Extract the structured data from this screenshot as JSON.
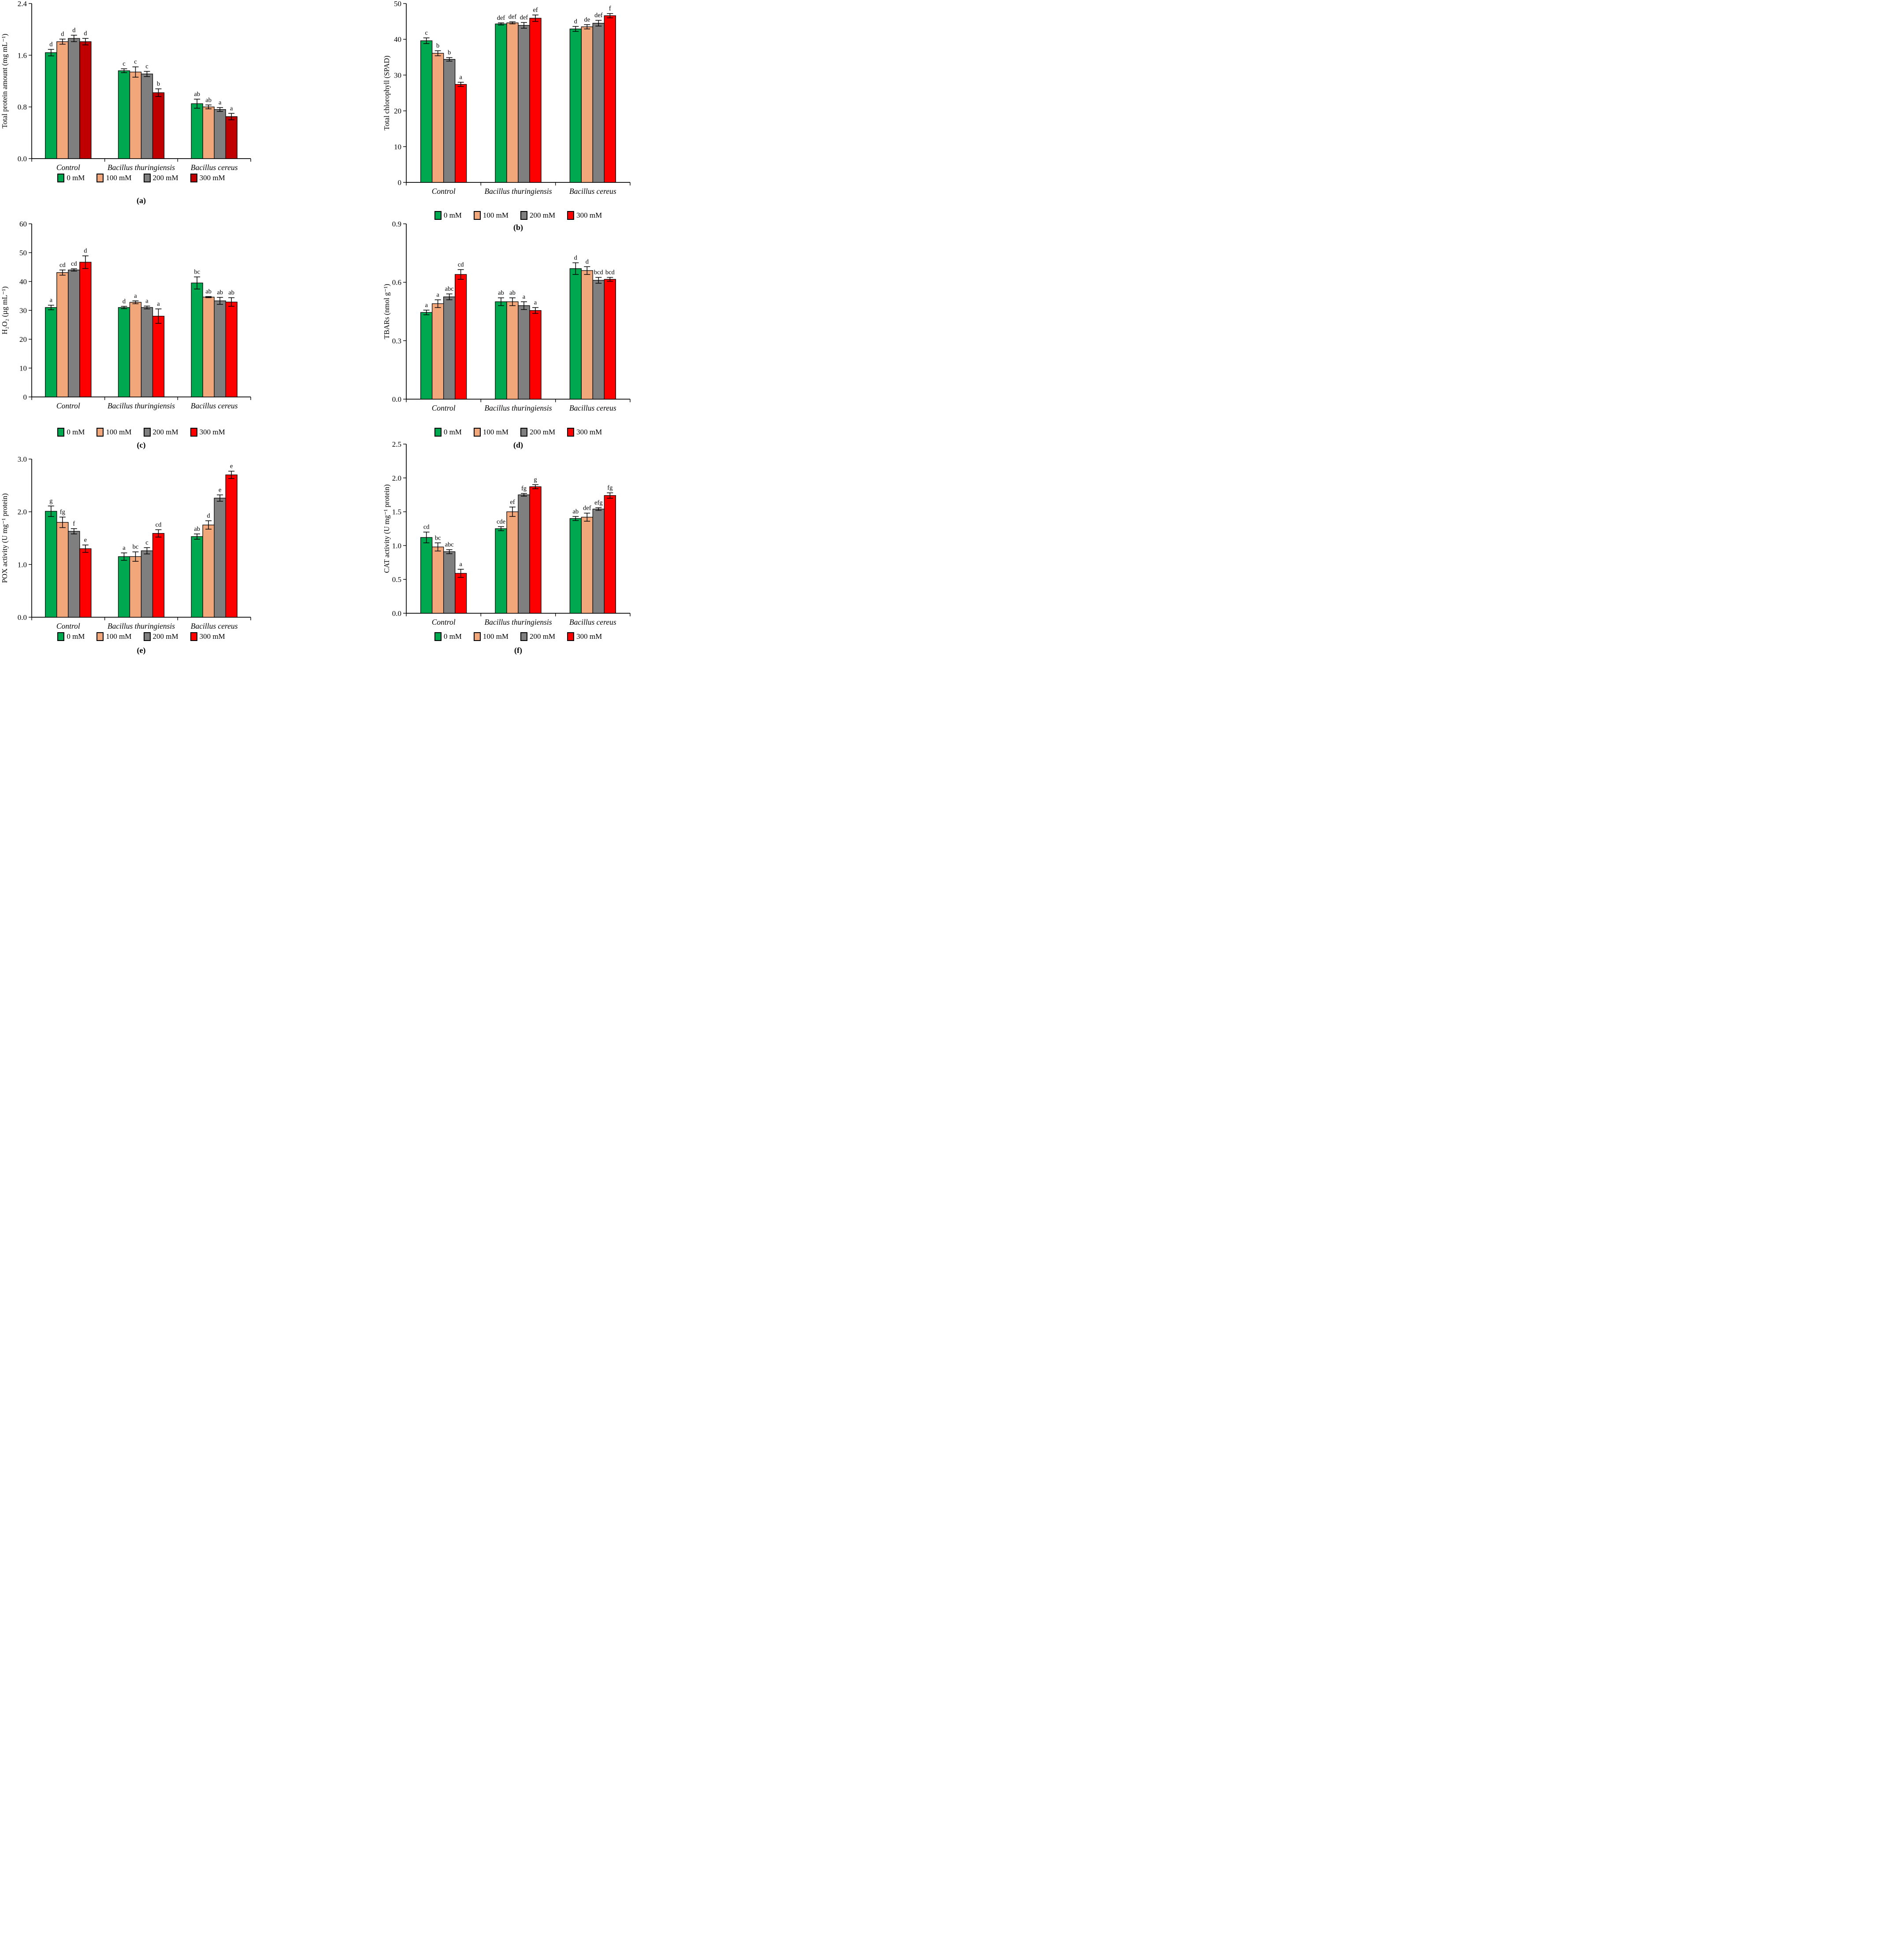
{
  "figure": {
    "background": "#FFFFFF",
    "legend_position": "bottom",
    "series_names": [
      "0 mM",
      "100 mM",
      "200 mM",
      "300 mM"
    ],
    "colors": {
      "green": "#00A94F",
      "peach": "#F2A77B",
      "gray": "#7F7F7F",
      "red": "#FF0000",
      "dark_red": "#C00000",
      "bar_outline": "#000000"
    }
  },
  "chart_data": [
    {
      "id": "a",
      "type": "bar",
      "caption": "(a)",
      "title": "",
      "xlabel": "",
      "ylabel": "Total protein amount (mg mL⁻¹)",
      "ymin": 0,
      "ymax": 2.4,
      "yticks": [
        "0.0",
        "0.8",
        "1.6",
        "2.4"
      ],
      "grid": false,
      "categories": [
        "Control",
        "Bacillus thuringiensis",
        "Bacillus cereus"
      ],
      "series": [
        {
          "name": "0 mM",
          "color": "#00A94F",
          "values": [
            1.64,
            1.36,
            0.85
          ],
          "errors": [
            0.05,
            0.03,
            0.07
          ],
          "letters": [
            "d",
            "c",
            "ab"
          ]
        },
        {
          "name": "100 mM",
          "color": "#F2A77B",
          "values": [
            1.81,
            1.34,
            0.8
          ],
          "errors": [
            0.04,
            0.08,
            0.03
          ],
          "letters": [
            "d",
            "c",
            "ab"
          ]
        },
        {
          "name": "200 mM",
          "color": "#7F7F7F",
          "values": [
            1.86,
            1.31,
            0.76
          ],
          "errors": [
            0.05,
            0.04,
            0.03
          ],
          "letters": [
            "d",
            "c",
            "a"
          ]
        },
        {
          "name": "300 mM",
          "color": "#C00000",
          "values": [
            1.81,
            1.02,
            0.65
          ],
          "errors": [
            0.05,
            0.06,
            0.05
          ],
          "letters": [
            "d",
            "b",
            "a"
          ]
        }
      ],
      "layout": {
        "ml": 72,
        "pw": 497,
        "ph": 352,
        "tp": 8,
        "leg_mt": 0,
        "cap_mt": 30
      }
    },
    {
      "id": "b",
      "type": "bar",
      "caption": "(b)",
      "title": "",
      "xlabel": "",
      "ylabel": "Total chlorophyll (SPAD)",
      "ymin": 0,
      "ymax": 50,
      "yticks": [
        "0",
        "10",
        "20",
        "30",
        "40",
        "50"
      ],
      "grid": false,
      "categories": [
        "Control",
        "Bacillus thuringiensis",
        "Bacillus cereus"
      ],
      "series": [
        {
          "name": "0 mM",
          "color": "#00A94F",
          "values": [
            39.6,
            44.3,
            42.9
          ],
          "errors": [
            0.8,
            0.3,
            0.7
          ],
          "letters": [
            "c",
            "def",
            "d"
          ]
        },
        {
          "name": "100 mM",
          "color": "#F2A77B",
          "values": [
            36.1,
            44.6,
            43.5
          ],
          "errors": [
            0.7,
            0.3,
            0.6
          ],
          "letters": [
            "b",
            "def",
            "de"
          ]
        },
        {
          "name": "200 mM",
          "color": "#7F7F7F",
          "values": [
            34.4,
            43.9,
            44.5
          ],
          "errors": [
            0.5,
            0.8,
            0.8
          ],
          "letters": [
            "b",
            "def",
            "def"
          ]
        },
        {
          "name": "300 mM",
          "color": "#FF0000",
          "values": [
            27.4,
            45.9,
            46.6
          ],
          "errors": [
            0.6,
            0.9,
            0.6
          ],
          "letters": [
            "a",
            "ef",
            "f"
          ]
        }
      ],
      "layout": {
        "ml": 55,
        "pw": 508,
        "ph": 406,
        "tp": 8,
        "leg_mt": 31,
        "cap_mt": 6
      }
    },
    {
      "id": "c",
      "type": "bar",
      "caption": "(c)",
      "title": "",
      "xlabel": "",
      "ylabel": "H₂O₂ (µg mL⁻¹)",
      "ymin": 0,
      "ymax": 60,
      "yticks": [
        "0",
        "10",
        "20",
        "30",
        "40",
        "50",
        "60"
      ],
      "grid": false,
      "categories": [
        "Control",
        "Bacillus thuringiensis",
        "Bacillus cereus"
      ],
      "series": [
        {
          "name": "0 mM",
          "color": "#00A94F",
          "values": [
            31.0,
            31.0,
            39.5
          ],
          "errors": [
            0.8,
            0.4,
            2.1
          ],
          "letters": [
            "a",
            "d",
            "bc"
          ]
        },
        {
          "name": "100 mM",
          "color": "#F2A77B",
          "values": [
            43.1,
            32.8,
            34.6
          ],
          "errors": [
            0.9,
            0.5,
            0.2
          ],
          "letters": [
            "cd",
            "a",
            "ab"
          ]
        },
        {
          "name": "200 mM",
          "color": "#7F7F7F",
          "values": [
            44.0,
            31.0,
            33.3
          ],
          "errors": [
            0.4,
            0.5,
            1.2
          ],
          "letters": [
            "cd",
            "a",
            "ab"
          ]
        },
        {
          "name": "300 mM",
          "color": "#FF0000",
          "values": [
            46.7,
            28.0,
            32.9
          ],
          "errors": [
            2.2,
            2.5,
            1.5
          ],
          "letters": [
            "d",
            "a",
            "ab"
          ]
        }
      ],
      "layout": {
        "ml": 72,
        "pw": 497,
        "ph": 393,
        "tp": 8,
        "leg_mt": 36,
        "cap_mt": 8
      }
    },
    {
      "id": "d",
      "type": "bar",
      "caption": "(d)",
      "title": "",
      "xlabel": "",
      "ylabel": "TBARs (nmol g⁻¹)",
      "ymin": 0,
      "ymax": 0.9,
      "yticks": [
        "0.0",
        "0.3",
        "0.6",
        "0.9"
      ],
      "grid": false,
      "categories": [
        "Control",
        "Bacillus thuringiensis",
        "Bacillus cereus"
      ],
      "series": [
        {
          "name": "0 mM",
          "color": "#00A94F",
          "values": [
            0.445,
            0.5,
            0.67
          ],
          "errors": [
            0.012,
            0.02,
            0.03
          ],
          "letters": [
            "a",
            "ab",
            "d"
          ]
        },
        {
          "name": "100 mM",
          "color": "#F2A77B",
          "values": [
            0.49,
            0.5,
            0.66
          ],
          "errors": [
            0.02,
            0.02,
            0.02
          ],
          "letters": [
            "a",
            "ab",
            "d"
          ]
        },
        {
          "name": "200 mM",
          "color": "#7F7F7F",
          "values": [
            0.525,
            0.48,
            0.61
          ],
          "errors": [
            0.015,
            0.02,
            0.015
          ],
          "letters": [
            "abc",
            "a",
            "bcd"
          ]
        },
        {
          "name": "300 mM",
          "color": "#FF0000",
          "values": [
            0.64,
            0.455,
            0.615
          ],
          "errors": [
            0.025,
            0.015,
            0.01
          ],
          "letters": [
            "cd",
            "a",
            "bcd"
          ]
        }
      ],
      "layout": {
        "ml": 55,
        "pw": 508,
        "ph": 398,
        "tp": 8,
        "leg_mt": 31,
        "cap_mt": 8
      }
    },
    {
      "id": "e",
      "type": "bar",
      "caption": "(e)",
      "title": "",
      "xlabel": "",
      "ylabel": "POX activity (U mg⁻¹ protein)",
      "ymin": 0,
      "ymax": 3.0,
      "yticks": [
        "0.0",
        "1.0",
        "2.0",
        "3.0"
      ],
      "grid": false,
      "categories": [
        "Control",
        "Bacillus thuringiensis",
        "Bacillus cereus"
      ],
      "series": [
        {
          "name": "0 mM",
          "color": "#00A94F",
          "values": [
            2.01,
            1.15,
            1.53
          ],
          "errors": [
            0.1,
            0.07,
            0.05
          ],
          "letters": [
            "g",
            "a",
            "ab"
          ]
        },
        {
          "name": "100 mM",
          "color": "#F2A77B",
          "values": [
            1.8,
            1.15,
            1.75
          ],
          "errors": [
            0.1,
            0.09,
            0.08
          ],
          "letters": [
            "fg",
            "bc",
            "d"
          ]
        },
        {
          "name": "200 mM",
          "color": "#7F7F7F",
          "values": [
            1.63,
            1.26,
            2.26
          ],
          "errors": [
            0.05,
            0.06,
            0.06
          ],
          "letters": [
            "f",
            "c",
            "e"
          ]
        },
        {
          "name": "300 mM",
          "color": "#FF0000",
          "values": [
            1.3,
            1.59,
            2.7
          ],
          "errors": [
            0.07,
            0.07,
            0.07
          ],
          "letters": [
            "e",
            "cd",
            "e"
          ]
        }
      ],
      "layout": {
        "ml": 72,
        "pw": 497,
        "ph": 359,
        "tp": 42,
        "leg_mt": 0,
        "cap_mt": 10
      }
    },
    {
      "id": "f",
      "type": "bar",
      "caption": "(f)",
      "title": "",
      "xlabel": "",
      "ylabel": "CAT activity (U mg⁻¹ protein)",
      "ymin": 0,
      "ymax": 2.5,
      "yticks": [
        "0.0",
        "0.5",
        "1.0",
        "1.5",
        "2.0",
        "2.5"
      ],
      "grid": false,
      "categories": [
        "Control",
        "Bacillus thuringiensis",
        "Bacillus cereus"
      ],
      "series": [
        {
          "name": "0 mM",
          "color": "#00A94F",
          "values": [
            1.12,
            1.25,
            1.4
          ],
          "errors": [
            0.08,
            0.03,
            0.03
          ],
          "letters": [
            "cd",
            "cde",
            "ab"
          ]
        },
        {
          "name": "100 mM",
          "color": "#F2A77B",
          "values": [
            0.98,
            1.5,
            1.42
          ],
          "errors": [
            0.06,
            0.07,
            0.06
          ],
          "letters": [
            "bc",
            "ef",
            "def"
          ]
        },
        {
          "name": "200 mM",
          "color": "#7F7F7F",
          "values": [
            0.91,
            1.75,
            1.54
          ],
          "errors": [
            0.03,
            0.02,
            0.02
          ],
          "letters": [
            "abc",
            "fg",
            "efg"
          ]
        },
        {
          "name": "300 mM",
          "color": "#FF0000",
          "values": [
            0.59,
            1.87,
            1.74
          ],
          "errors": [
            0.06,
            0.03,
            0.04
          ],
          "letters": [
            "a",
            "g",
            "fg"
          ]
        }
      ],
      "layout": {
        "ml": 55,
        "pw": 508,
        "ph": 384,
        "tp": 8,
        "leg_mt": 9,
        "cap_mt": 10
      }
    }
  ]
}
